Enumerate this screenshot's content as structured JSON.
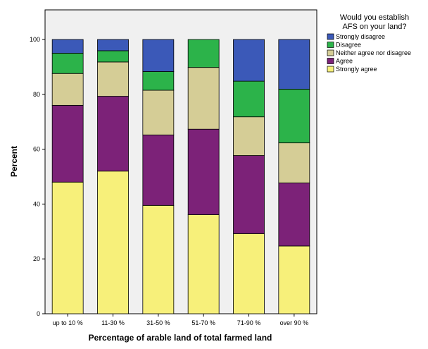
{
  "chart_data": {
    "type": "bar",
    "stacked": true,
    "orientation": "vertical",
    "xlabel": "Percentage of arable land of total farmed land",
    "ylabel": "Percent",
    "ylim": [
      0,
      100
    ],
    "yticks": [
      "0",
      "20",
      "40",
      "60",
      "80",
      "100"
    ],
    "categories": [
      "up to 10 %",
      "11-30 %",
      "31-50 %",
      "51-70 %",
      "71-90 %",
      "over 90 %"
    ],
    "legend": {
      "title_lines": [
        "Would you establish",
        "AFS on your land?"
      ],
      "placement": "right"
    },
    "series": [
      {
        "name": "Strongly agree",
        "color": "#f7f07a",
        "values": [
          48.0,
          52.0,
          39.5,
          36.1,
          29.2,
          24.7
        ]
      },
      {
        "name": "Agree",
        "color": "#7c2278",
        "values": [
          28.0,
          27.3,
          25.7,
          31.2,
          28.5,
          23.0
        ]
      },
      {
        "name": "Neither agree nor disagree",
        "color": "#d5cd96",
        "values": [
          11.6,
          12.5,
          16.3,
          22.5,
          14.1,
          14.6
        ]
      },
      {
        "name": "Disagree",
        "color": "#2cb34a",
        "values": [
          7.4,
          4.1,
          6.8,
          10.2,
          13.0,
          19.6
        ]
      },
      {
        "name": "Strongly disagree",
        "color": "#3b59b8",
        "values": [
          5.0,
          4.1,
          11.7,
          0.0,
          15.2,
          18.1
        ]
      }
    ],
    "legend_order": [
      "Strongly disagree",
      "Disagree",
      "Neither agree nor disagree",
      "Agree",
      "Strongly agree"
    ],
    "grid": false,
    "plot_background": "#f0f0f0"
  }
}
